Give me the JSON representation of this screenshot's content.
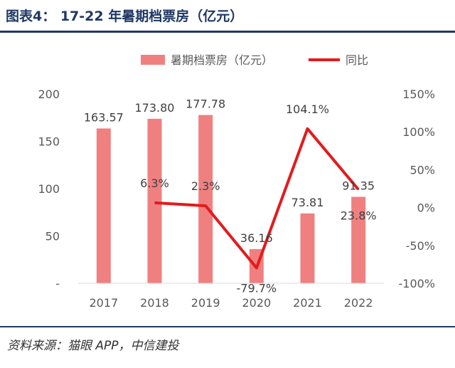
{
  "figure": {
    "title": "图表4： 17-22 年暑期档票房（亿元）",
    "source": "资料来源：猫眼 APP，中信建投"
  },
  "colors": {
    "bar": "#f08080",
    "line": "#e41a1c",
    "title": "#1f3864",
    "axis_text": "#595959"
  },
  "chart_data": {
    "type": "bar",
    "categories": [
      "2017",
      "2018",
      "2019",
      "2020",
      "2021",
      "2022"
    ],
    "legend_position": "top",
    "series": [
      {
        "name": "暑期档票房（亿元）",
        "type": "bar",
        "axis": "left",
        "values": [
          163.57,
          173.8,
          177.78,
          36.16,
          73.81,
          91.35
        ],
        "labels": [
          "163.57",
          "173.80",
          "177.78",
          "36.16",
          "73.81",
          "91.35"
        ]
      },
      {
        "name": "同比",
        "type": "line",
        "axis": "right",
        "values": [
          null,
          6.3,
          2.3,
          -79.7,
          104.1,
          23.8
        ],
        "labels": [
          "",
          "6.3%",
          "2.3%",
          "-79.7%",
          "104.1%",
          "23.8%"
        ]
      }
    ],
    "y_left": {
      "ylim": [
        0,
        200
      ],
      "ticks": [
        "-",
        "50",
        "100",
        "150",
        "200"
      ]
    },
    "y_right": {
      "ylim": [
        -100,
        150
      ],
      "ticks": [
        "-100%",
        "-50%",
        "0%",
        "50%",
        "100%",
        "150%"
      ]
    },
    "grid": false
  }
}
